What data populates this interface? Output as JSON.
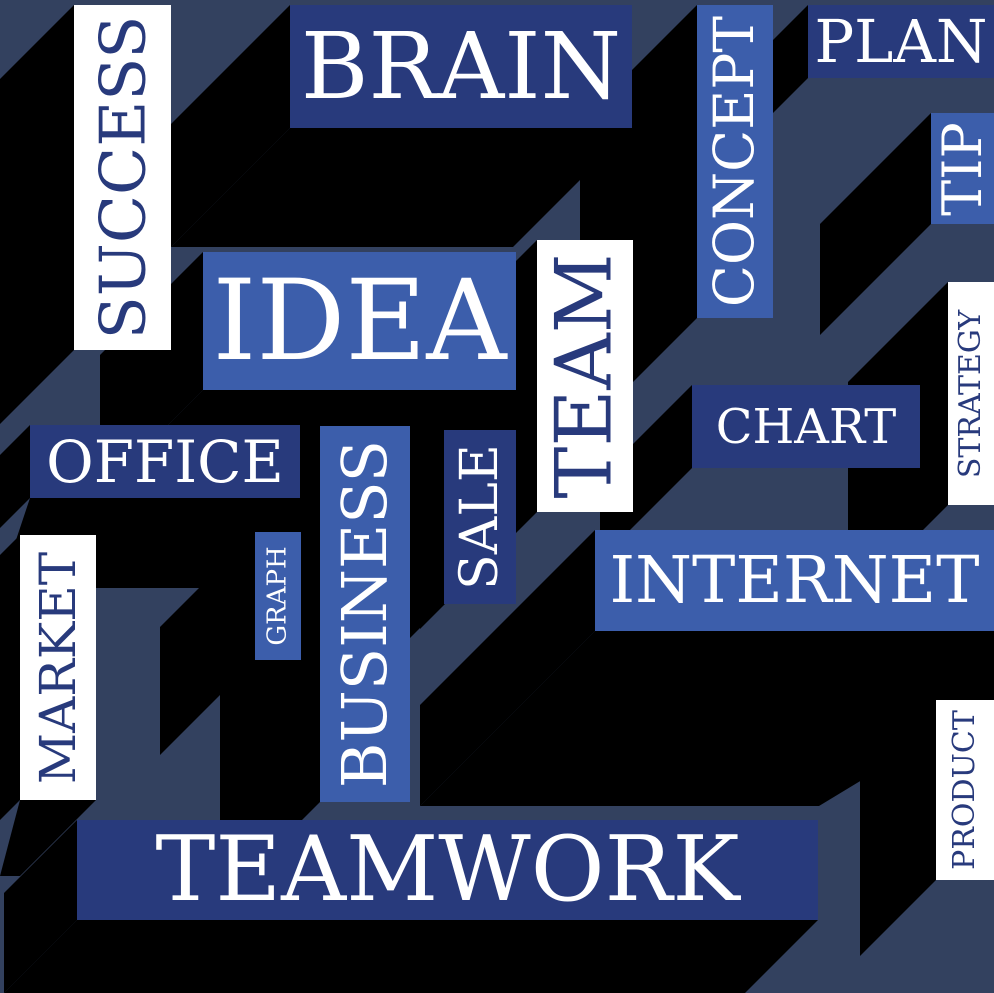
{
  "palette": {
    "background": "#33415f",
    "shadow": "#000000",
    "navy": "#283a7c",
    "blue": "#3c5eab",
    "white": "#ffffff"
  },
  "words": {
    "brain": "BRAIN",
    "plan": "PLAN",
    "concept": "CONCEPT",
    "tip": "TIP",
    "success": "SUCCESS",
    "idea": "IDEA",
    "team": "TEAM",
    "chart": "CHART",
    "strategy": "STRATEGY",
    "office": "OFFICE",
    "business": "BUSINESS",
    "sale": "SALE",
    "internet": "INTERNET",
    "graph": "GRAPH",
    "market": "MARKET",
    "product": "PRODUCT",
    "teamwork": "TEAMWORK"
  }
}
